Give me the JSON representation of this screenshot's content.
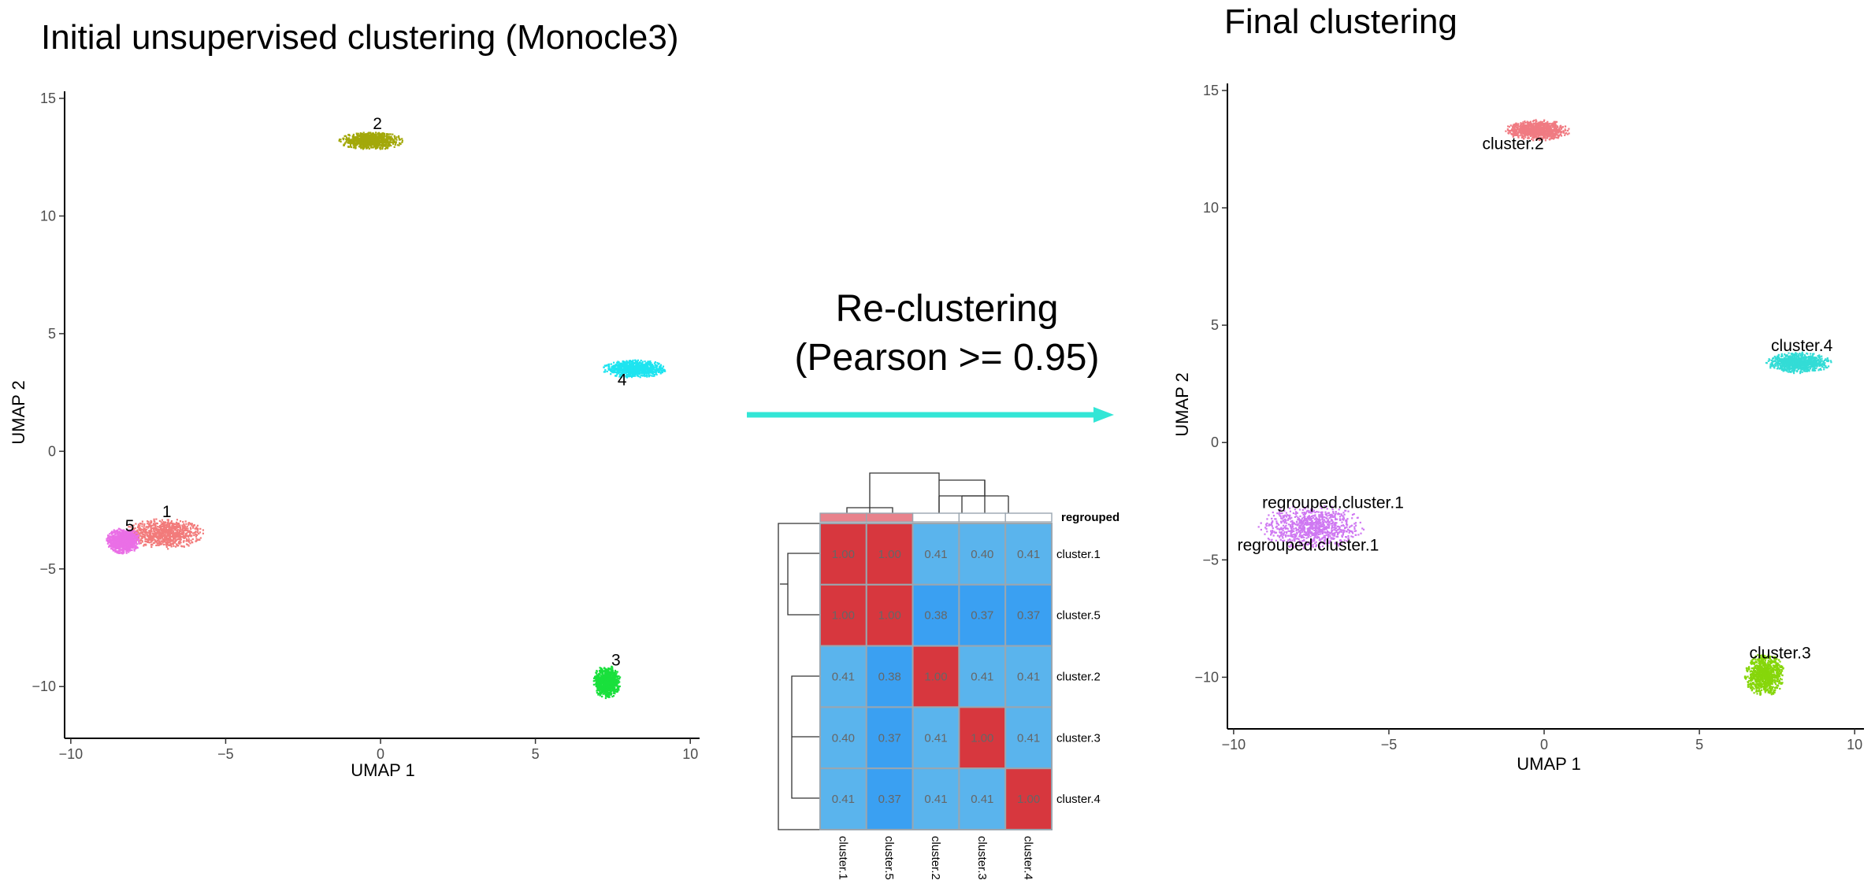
{
  "titles": {
    "left": "Initial unsupervised clustering (Monocle3)",
    "right": "Final clustering"
  },
  "arrow": {
    "label_line1": "Re-clustering",
    "label_line2": "(Pearson >= 0.95)",
    "color": "#33e6d6"
  },
  "chart_data": [
    {
      "type": "scatter",
      "title": "Initial unsupervised clustering (Monocle3)",
      "xlabel": "UMAP 1",
      "ylabel": "UMAP 2",
      "xlim": [
        -10.2,
        10.3
      ],
      "ylim": [
        -12.2,
        15.3
      ],
      "xticks": [
        -10,
        -5,
        0,
        5,
        10
      ],
      "yticks": [
        -10,
        -5,
        0,
        5,
        10,
        15
      ],
      "xtick_labels": [
        "−10",
        "−5",
        "0",
        "5",
        "10"
      ],
      "ytick_labels": [
        "−10",
        "−5",
        "0",
        "5",
        "10",
        "15"
      ],
      "grid": false,
      "clusters": [
        {
          "label": "1",
          "color": "#f27b7b",
          "center": [
            -7.0,
            -3.5
          ],
          "spread": [
            1.35,
            0.65
          ],
          "label_at": [
            -6.9,
            -2.8
          ]
        },
        {
          "label": "5",
          "color": "#ea6fe6",
          "center": [
            -8.3,
            -3.8
          ],
          "spread": [
            0.55,
            0.55
          ],
          "label_at": [
            -8.1,
            -3.4
          ]
        },
        {
          "label": "2",
          "color": "#a3a80a",
          "center": [
            -0.3,
            13.2
          ],
          "spread": [
            1.05,
            0.38
          ],
          "label_at": [
            -0.1,
            13.7
          ]
        },
        {
          "label": "4",
          "color": "#1ee4f0",
          "center": [
            8.2,
            3.5
          ],
          "spread": [
            1.05,
            0.38
          ],
          "label_at": [
            7.8,
            2.8
          ]
        },
        {
          "label": "3",
          "color": "#19e03c",
          "center": [
            7.3,
            -9.8
          ],
          "spread": [
            0.45,
            0.7
          ],
          "label_at": [
            7.6,
            -9.1
          ]
        }
      ]
    },
    {
      "type": "heatmap",
      "title": "",
      "rows": [
        "cluster.1",
        "cluster.5",
        "cluster.2",
        "cluster.3",
        "cluster.4"
      ],
      "columns": [
        "cluster.1",
        "cluster.5",
        "cluster.2",
        "cluster.3",
        "cluster.4"
      ],
      "values": [
        [
          "1.00",
          "1.00",
          "0.41",
          "0.40",
          "0.41"
        ],
        [
          "1.00",
          "1.00",
          "0.38",
          "0.37",
          "0.37"
        ],
        [
          "0.41",
          "0.38",
          "1.00",
          "0.41",
          "0.41"
        ],
        [
          "0.40",
          "0.37",
          "0.41",
          "1.00",
          "0.41"
        ],
        [
          "0.41",
          "0.37",
          "0.41",
          "0.41",
          "1.00"
        ]
      ],
      "annotation": {
        "label": "regrouped",
        "groups": [
          "regrouped.cluster.1",
          "regrouped.cluster.1",
          "cluster.2",
          "cluster.3",
          "cluster.4"
        ]
      },
      "colors": {
        "high": "#d7373e",
        "low_light": "#5ab4ed",
        "low_dark": "#3aa0f2",
        "border": "#9aa6b0",
        "annotation_high": "#e8828c"
      }
    },
    {
      "type": "scatter",
      "title": "Final clustering",
      "xlabel": "UMAP 1",
      "ylabel": "UMAP 2",
      "xlim": [
        -10.2,
        10.3
      ],
      "ylim": [
        -12.2,
        15.3
      ],
      "xticks": [
        -10,
        -5,
        0,
        5,
        10
      ],
      "yticks": [
        -10,
        -5,
        0,
        5,
        10,
        15
      ],
      "xtick_labels": [
        "−10",
        "−5",
        "0",
        "5",
        "10"
      ],
      "ytick_labels": [
        "−10",
        "−5",
        "0",
        "5",
        "10",
        "15"
      ],
      "grid": false,
      "clusters": [
        {
          "label": "regrouped.cluster.1",
          "color": "#cf78f2",
          "center": [
            -7.5,
            -3.6
          ],
          "spread": [
            1.7,
            0.95
          ],
          "label_at": [
            -6.8,
            -2.8
          ]
        },
        {
          "label": "regrouped.cluster.1",
          "color": "#cf78f2",
          "center": [
            -7.5,
            -3.6
          ],
          "spread": [
            0.0,
            0.0
          ],
          "label_at": [
            -7.6,
            -4.6
          ]
        },
        {
          "label": "cluster.2",
          "color": "#f07b82",
          "center": [
            -0.2,
            13.3
          ],
          "spread": [
            1.05,
            0.45
          ],
          "label_at": [
            -1.0,
            12.5
          ]
        },
        {
          "label": "cluster.4",
          "color": "#33dcd6",
          "center": [
            8.2,
            3.4
          ],
          "spread": [
            1.05,
            0.45
          ],
          "label_at": [
            8.3,
            3.9
          ]
        },
        {
          "label": "cluster.3",
          "color": "#86d60a",
          "center": [
            7.1,
            -9.9
          ],
          "spread": [
            0.65,
            0.9
          ],
          "label_at": [
            7.6,
            -9.2
          ]
        }
      ]
    }
  ]
}
